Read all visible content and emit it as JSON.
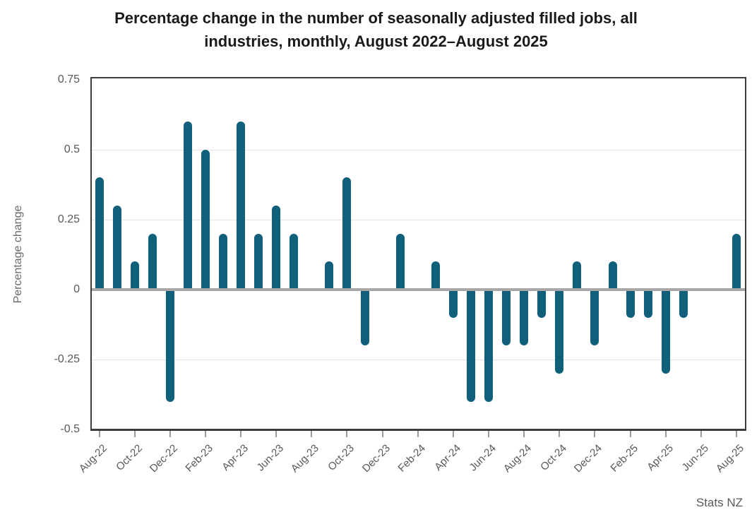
{
  "chart_data": {
    "type": "bar",
    "title": "Percentage change in the number of seasonally adjusted filled jobs, all industries, monthly, August 2022–August 2025",
    "title_lines": [
      "Percentage change in the number of seasonally adjusted filled jobs, all",
      "industries, monthly, August 2022–August 2025"
    ],
    "xlabel": "",
    "ylabel": "Percentage change",
    "source": "Stats NZ",
    "categories": [
      "Aug-22",
      "Sep-22",
      "Oct-22",
      "Nov-22",
      "Dec-22",
      "Jan-23",
      "Feb-23",
      "Mar-23",
      "Apr-23",
      "May-23",
      "Jun-23",
      "Jul-23",
      "Aug-23",
      "Sep-23",
      "Oct-23",
      "Nov-23",
      "Dec-23",
      "Jan-24",
      "Feb-24",
      "Mar-24",
      "Apr-24",
      "May-24",
      "Jun-24",
      "Jul-24",
      "Aug-24",
      "Sep-24",
      "Oct-24",
      "Nov-24",
      "Dec-24",
      "Jan-25",
      "Feb-25",
      "Mar-25",
      "Apr-25",
      "May-25",
      "Jun-25",
      "Jul-25",
      "Aug-25"
    ],
    "values": [
      0.4,
      0.3,
      0.1,
      0.2,
      -0.4,
      0.6,
      0.5,
      0.2,
      0.6,
      0.2,
      0.3,
      0.2,
      0,
      0.1,
      0.4,
      -0.2,
      0,
      0.2,
      0,
      0.1,
      -0.1,
      -0.4,
      -0.4,
      -0.2,
      -0.2,
      -0.1,
      -0.3,
      0.1,
      -0.2,
      0.1,
      -0.1,
      -0.1,
      -0.3,
      -0.1,
      0,
      0,
      0.2
    ],
    "x_tick_labels": [
      "Aug-22",
      "Oct-22",
      "Dec-22",
      "Feb-23",
      "Apr-23",
      "Jun-23",
      "Aug-23",
      "Oct-23",
      "Dec-23",
      "Feb-24",
      "Apr-24",
      "Jun-24",
      "Aug-24",
      "Oct-24",
      "Dec-24",
      "Feb-25",
      "Apr-25",
      "Jun-25",
      "Aug-25"
    ],
    "y_ticks": [
      0.75,
      0.5,
      0.25,
      0,
      -0.25,
      -0.5
    ],
    "y_tick_labels": [
      "0.75",
      "0.5",
      "0.25",
      "0",
      "-0.25",
      "-0.5"
    ],
    "ylim": [
      -0.5,
      0.75
    ],
    "grid": true,
    "legend_position": "none",
    "bar_color": "#10607b",
    "zero_line_color": "#a8a8a8",
    "gridline_color": "#e3e3e3",
    "axis_border_color": "#3d3d3d",
    "label_color": "#595959"
  }
}
